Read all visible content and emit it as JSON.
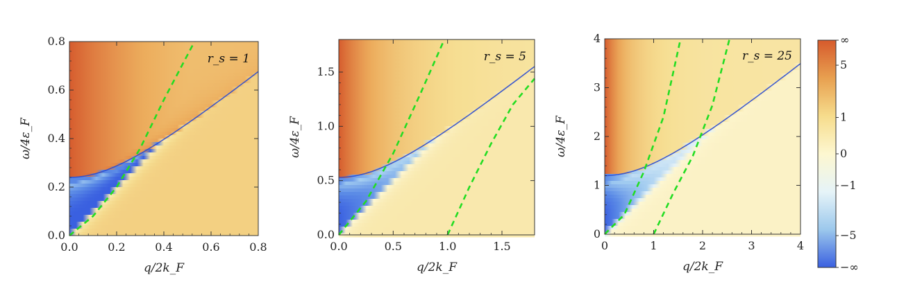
{
  "chart_data": [
    {
      "type": "heatmap",
      "annotation": "r_s = 1",
      "xlabel": "q/2k_F",
      "ylabel": "ω/4ε_F",
      "xlim": [
        0,
        0.8
      ],
      "ylim": [
        0,
        0.8
      ],
      "xticks": [
        0.0,
        0.2,
        0.4,
        0.6,
        0.8
      ],
      "xtick_labels": [
        "0.0",
        "0.2",
        "0.4",
        "0.6",
        "0.8"
      ],
      "yticks": [
        0.0,
        0.2,
        0.4,
        0.6,
        0.8
      ],
      "ytick_labels": [
        "0.0",
        "0.2",
        "0.4",
        "0.6",
        "0.8"
      ],
      "plasmon_omega0": 0.24,
      "plasmon_asymptote_slope": 0.79,
      "dashed_curves": [
        {
          "color": "#22dd22",
          "points": [
            [
              0,
              0
            ],
            [
              0.1,
              0.08
            ],
            [
              0.2,
              0.2
            ],
            [
              0.3,
              0.36
            ],
            [
              0.4,
              0.56
            ],
            [
              0.53,
              0.8
            ]
          ]
        }
      ]
    },
    {
      "type": "heatmap",
      "annotation": "r_s = 5",
      "xlabel": "q/2k_F",
      "ylabel": "ω/4ε_F",
      "xlim": [
        0,
        1.8
      ],
      "ylim": [
        0,
        1.8
      ],
      "xticks": [
        0.0,
        0.5,
        1.0,
        1.5
      ],
      "xtick_labels": [
        "0.0",
        "0.5",
        "1.0",
        "1.5"
      ],
      "yticks": [
        0.0,
        0.5,
        1.0,
        1.5
      ],
      "ytick_labels": [
        "0.0",
        "0.5",
        "1.0",
        "1.5"
      ],
      "plasmon_omega0": 0.53,
      "plasmon_asymptote_slope": 0.81,
      "dashed_curves": [
        {
          "color": "#22dd22",
          "points": [
            [
              0,
              0
            ],
            [
              0.25,
              0.31
            ],
            [
              0.5,
              0.75
            ],
            [
              0.75,
              1.3
            ],
            [
              0.97,
              1.8
            ]
          ]
        },
        {
          "color": "#22dd22",
          "points": [
            [
              1.0,
              0
            ],
            [
              1.2,
              0.44
            ],
            [
              1.4,
              0.84
            ],
            [
              1.6,
              1.2
            ],
            [
              1.8,
              1.44
            ]
          ]
        }
      ]
    },
    {
      "type": "heatmap",
      "annotation": "r_s = 25",
      "xlabel": "q/2k_F",
      "ylabel": "ω/4ε_F",
      "xlim": [
        0,
        4.0
      ],
      "ylim": [
        0,
        4.0
      ],
      "xticks": [
        0,
        1,
        2,
        3,
        4
      ],
      "xtick_labels": [
        "0",
        "1",
        "2",
        "3",
        "4"
      ],
      "yticks": [
        0,
        1,
        2,
        3,
        4
      ],
      "ytick_labels": [
        "0",
        "1",
        "2",
        "3",
        "4"
      ],
      "plasmon_omega0": 1.2,
      "plasmon_asymptote_slope": 0.82,
      "dashed_curves": [
        {
          "color": "#22dd22",
          "points": [
            [
              0,
              0
            ],
            [
              0.4,
              0.4
            ],
            [
              0.8,
              1.28
            ],
            [
              1.2,
              2.4
            ],
            [
              1.55,
              4.0
            ]
          ]
        },
        {
          "color": "#22dd22",
          "points": [
            [
              1.0,
              0
            ],
            [
              1.4,
              0.84
            ],
            [
              1.8,
              1.6
            ],
            [
              2.2,
              2.64
            ],
            [
              2.55,
              4.0
            ]
          ]
        }
      ]
    }
  ],
  "colorbar": {
    "tick_labels": [
      "∞",
      "5",
      "1",
      "0",
      "−1",
      "−5",
      "−∞"
    ],
    "stops": [
      "#d65a2c",
      "#e8a050",
      "#f6dc8c",
      "#fdf7d0",
      "#e6f4f8",
      "#9cc8ec",
      "#3a60e0"
    ]
  },
  "colors": {
    "dashed": "#22dd22",
    "positive_high": "#d65a2c",
    "negative_high": "#3a60e0"
  }
}
